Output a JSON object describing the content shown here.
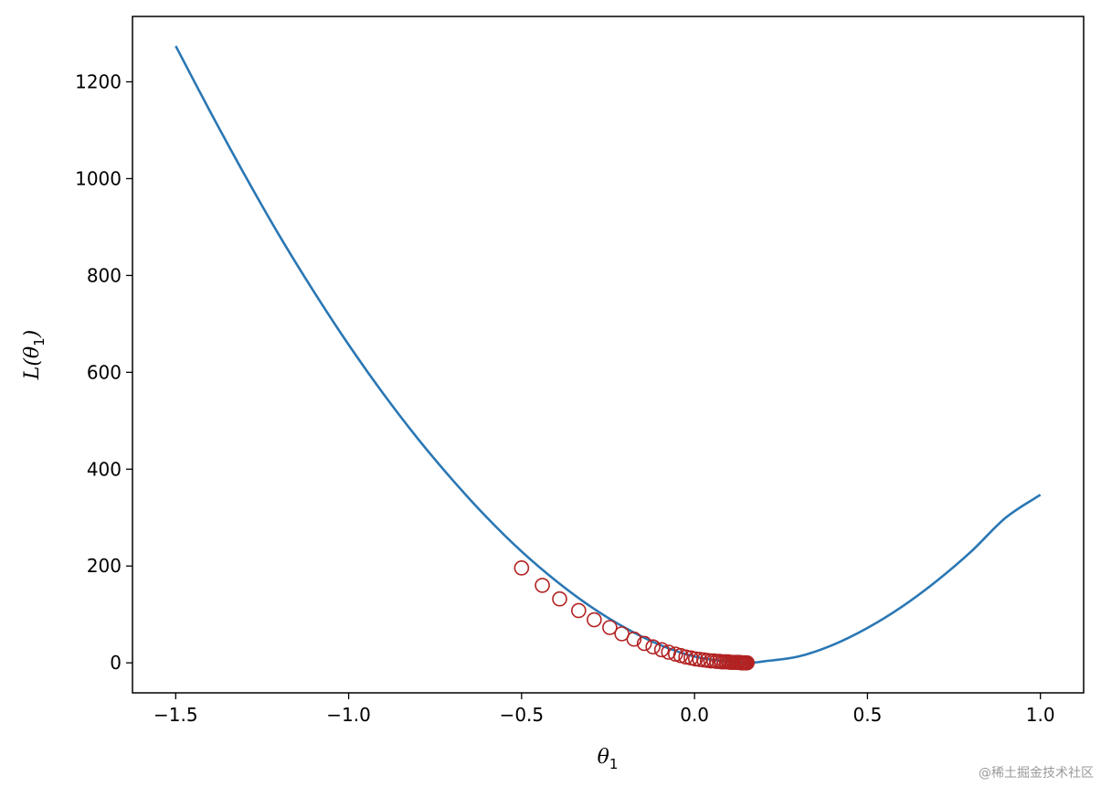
{
  "chart_data": {
    "type": "line",
    "title": "",
    "xlabel": "θ",
    "xlabel_sub": "1",
    "ylabel_prefix": "L(θ",
    "ylabel_sub": "1",
    "ylabel_suffix": ")",
    "xlim": [
      -1.625,
      1.125
    ],
    "ylim": [
      -62,
      1335
    ],
    "xticks": [
      -1.5,
      -1.0,
      -0.5,
      0.0,
      0.5,
      1.0
    ],
    "xtick_labels": [
      "−1.5",
      "−1.0",
      "−0.5",
      "0.0",
      "0.5",
      "1.0"
    ],
    "yticks": [
      0,
      200,
      400,
      600,
      800,
      1000,
      1200
    ],
    "ytick_labels": [
      "0",
      "200",
      "400",
      "600",
      "800",
      "1000",
      "1200"
    ],
    "grid": false,
    "series": [
      {
        "kind": "line",
        "color": "#2a77b4",
        "x": [
          -1.5,
          -1.4,
          -1.3,
          -1.2,
          -1.1,
          -1.0,
          -0.9,
          -0.8,
          -0.7,
          -0.6,
          -0.5,
          -0.4,
          -0.3,
          -0.2,
          -0.1,
          0.0,
          0.1,
          0.16,
          0.2,
          0.3,
          0.4,
          0.5,
          0.6,
          0.7,
          0.8,
          0.9,
          1.0
        ],
        "y": [
          1274,
          1138,
          1007,
          882,
          766,
          657,
          556,
          463,
          378,
          300,
          230,
          169,
          116,
          72,
          37,
          13,
          2,
          0,
          3,
          13,
          37,
          72,
          116,
          169,
          230,
          300,
          347
        ]
      },
      {
        "kind": "scatter",
        "marker": "open-circle",
        "color": "#b22222",
        "x": [
          -0.5,
          -0.44,
          -0.39,
          -0.335,
          -0.29,
          -0.245,
          -0.21,
          -0.175,
          -0.145,
          -0.12,
          -0.095,
          -0.075,
          -0.055,
          -0.04,
          -0.025,
          -0.01,
          0.003,
          0.015,
          0.027,
          0.037,
          0.047,
          0.056,
          0.064,
          0.072,
          0.079,
          0.086,
          0.092,
          0.098,
          0.103,
          0.108,
          0.113,
          0.118,
          0.122,
          0.126,
          0.13,
          0.134,
          0.137,
          0.14,
          0.143,
          0.146,
          0.149,
          0.152
        ],
        "y": [
          196,
          160,
          132,
          108,
          89,
          73,
          60,
          49,
          40,
          33,
          27,
          22,
          18,
          15,
          12,
          10,
          8,
          7,
          6,
          5,
          4,
          4,
          3,
          3,
          2,
          2,
          2,
          2,
          1,
          1,
          1,
          1,
          1,
          1,
          1,
          0,
          0,
          0,
          0,
          0,
          0,
          0
        ]
      }
    ]
  },
  "watermark": "@稀土掘金技术社区"
}
